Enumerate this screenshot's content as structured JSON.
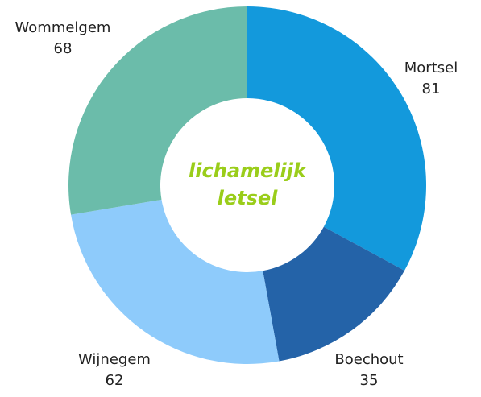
{
  "chart_data": {
    "type": "donut",
    "title": "lichamelijk letsel",
    "categories": [
      "Mortsel",
      "Boechout",
      "Wijnegem",
      "Wommelgem"
    ],
    "values": [
      81,
      35,
      62,
      68
    ],
    "colors": [
      "#1399dc",
      "#2463a8",
      "#8ecbfb",
      "#6bbcaa"
    ]
  }
}
